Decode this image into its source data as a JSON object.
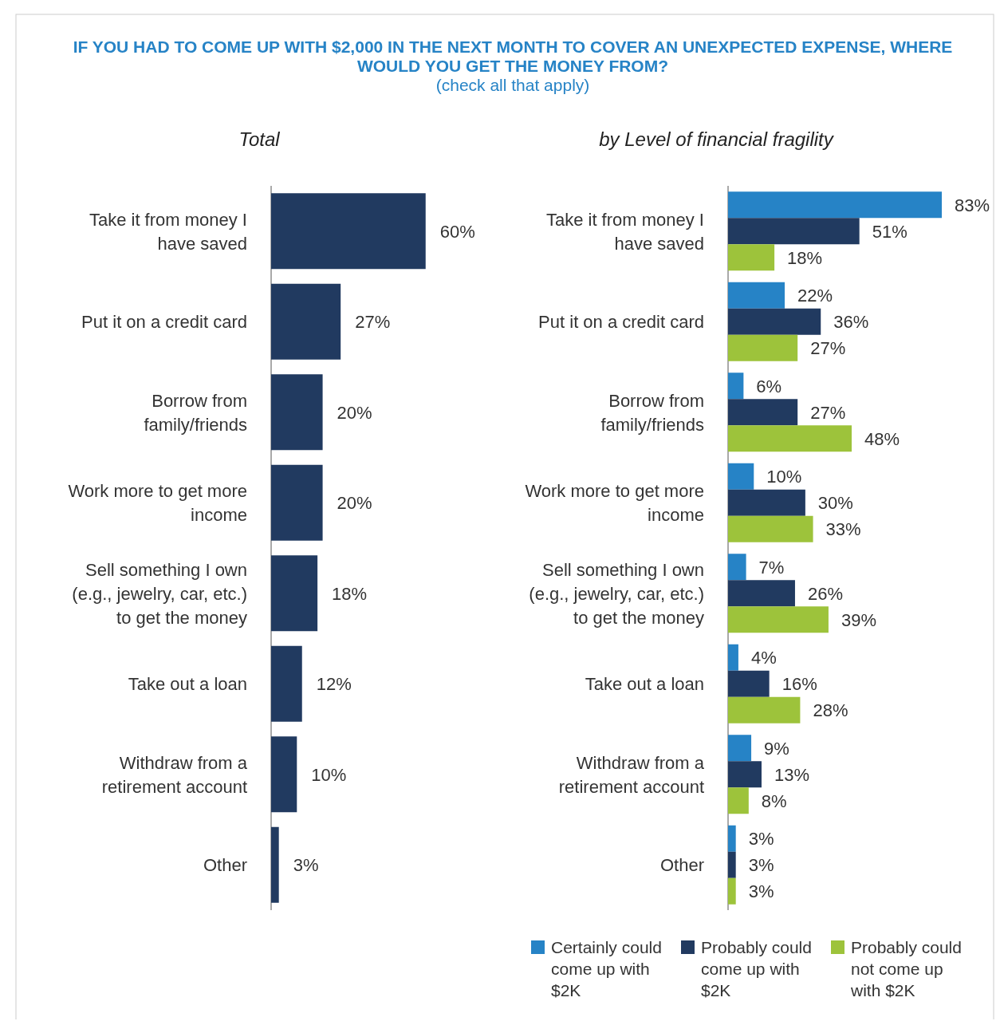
{
  "chart_data": [
    {
      "type": "bar",
      "orientation": "horizontal",
      "title": "IF YOU HAD TO COME UP WITH $2,000 IN THE NEXT MONTH TO COVER AN UNEXPECTED EXPENSE, WHERE WOULD YOU GET THE MONEY FROM?",
      "annotations": [
        "(check all that apply)"
      ],
      "subtitle": "Total",
      "categories": [
        "Take it from money I have saved",
        "Put it on a credit card",
        "Borrow from family/friends",
        "Work more to get more income",
        "Sell something I own (e.g., jewelry, car, etc.) to get the money",
        "Take out a loan",
        "Withdraw from a retirement account",
        "Other"
      ],
      "series": [
        {
          "color": "#213a60",
          "values": [
            60,
            27,
            20,
            20,
            18,
            12,
            10,
            3
          ],
          "value_labels": [
            "60%",
            "27%",
            "20%",
            "20%",
            "18%",
            "12%",
            "10%",
            "3%"
          ]
        }
      ],
      "legend": false
    },
    {
      "type": "bar",
      "orientation": "horizontal",
      "subtitle": "by Level of financial fragility",
      "categories": [
        "Take it from money I have saved",
        "Put it on a credit card",
        "Borrow from family/friends",
        "Work more to get more income",
        "Sell something I own (e.g., jewelry, car, etc.) to get the money",
        "Take out a loan",
        "Withdraw from a retirement account",
        "Other"
      ],
      "series": [
        {
          "name": "Certainly could come up with $2K",
          "color": "#2683c6",
          "values": [
            83,
            22,
            6,
            10,
            7,
            4,
            9,
            3
          ],
          "value_labels": [
            "83%",
            "22%",
            "6%",
            "10%",
            "7%",
            "4%",
            "9%",
            "3%"
          ]
        },
        {
          "name": "Probably could come up with $2K",
          "color": "#213a60",
          "values": [
            51,
            36,
            27,
            30,
            26,
            16,
            13,
            3
          ],
          "value_labels": [
            "51%",
            "36%",
            "27%",
            "30%",
            "26%",
            "16%",
            "13%",
            "3%"
          ]
        },
        {
          "name": "Probably could not come up with $2K",
          "color": "#9dc33b",
          "values": [
            18,
            27,
            48,
            33,
            39,
            28,
            8,
            3
          ],
          "value_labels": [
            "18%",
            "27%",
            "48%",
            "33%",
            "39%",
            "28%",
            "8%",
            "3%"
          ]
        }
      ],
      "legend": "bottom"
    }
  ]
}
